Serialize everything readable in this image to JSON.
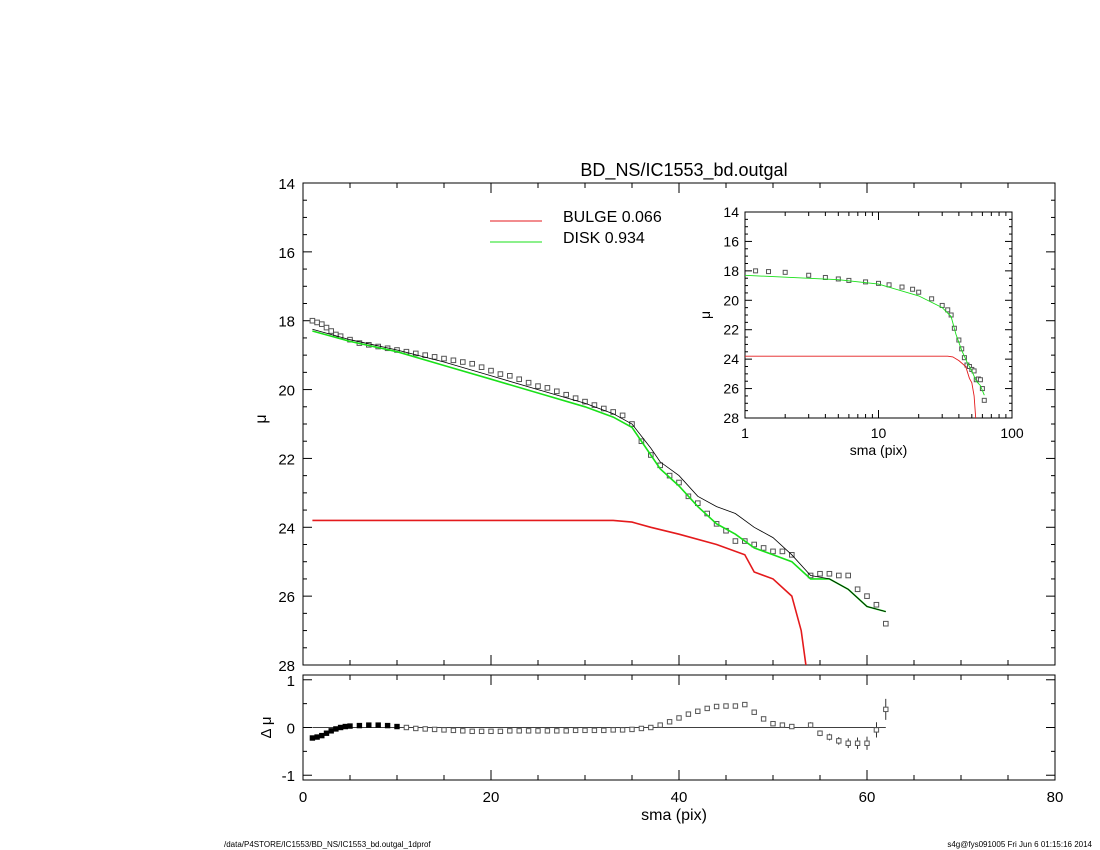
{
  "footer": {
    "left": "/data/P4STORE/IC1553/BD_NS/IC1553_bd.outgal_1dprof",
    "right": "s4g@fys091005  Fri Jun  6 01:15:16 2014"
  },
  "colors": {
    "bulge": "#e41a1c",
    "disk": "#19e019",
    "total": "#000000",
    "points": "#555555"
  },
  "chart_data": [
    {
      "id": "main",
      "type": "line",
      "title": "BD_NS/IC1553_bd.outgal",
      "xlabel": "",
      "ylabel": "μ",
      "xlim": [
        0,
        80
      ],
      "ylim": [
        28,
        14
      ],
      "y_ticks": [
        "14",
        "16",
        "18",
        "20",
        "22",
        "24",
        "26",
        "28"
      ],
      "y_tick_values": [
        14,
        16,
        18,
        20,
        22,
        24,
        26,
        28
      ],
      "legend": {
        "placement": "top-center",
        "entries": [
          {
            "name": "BULGE",
            "value": "0.066",
            "color": "#e41a1c"
          },
          {
            "name": "DISK",
            "value": "0.934",
            "color": "#19e019"
          }
        ]
      },
      "series": [
        {
          "name": "BULGE",
          "color": "#e41a1c",
          "x": [
            1,
            5,
            10,
            15,
            20,
            25,
            30,
            33,
            35,
            37,
            40,
            44,
            47,
            48,
            50,
            52,
            53,
            53.5
          ],
          "y": [
            23.8,
            23.8,
            23.8,
            23.8,
            23.8,
            23.8,
            23.8,
            23.8,
            23.85,
            24.0,
            24.2,
            24.5,
            24.8,
            25.3,
            25.5,
            26.0,
            27.0,
            28.0
          ]
        },
        {
          "name": "DISK",
          "color": "#19e019",
          "x": [
            1,
            5,
            10,
            15,
            20,
            25,
            30,
            33,
            35,
            37,
            38,
            40,
            42,
            44,
            46,
            48,
            50,
            52,
            54,
            56,
            58,
            60,
            62
          ],
          "y": [
            18.3,
            18.6,
            18.9,
            19.3,
            19.7,
            20.1,
            20.5,
            20.8,
            21.1,
            21.9,
            22.3,
            22.8,
            23.4,
            23.9,
            24.2,
            24.6,
            24.8,
            25.0,
            25.5,
            25.5,
            25.8,
            26.3,
            26.45
          ]
        },
        {
          "name": "",
          "color": "#000000",
          "x": [
            1,
            5,
            10,
            15,
            20,
            25,
            30,
            33,
            35,
            37,
            38,
            40,
            42,
            44,
            46,
            48,
            50,
            52,
            54,
            56,
            58,
            60,
            62
          ],
          "y": [
            18.25,
            18.55,
            18.85,
            19.2,
            19.6,
            20.0,
            20.4,
            20.7,
            21.0,
            21.7,
            22.1,
            22.5,
            23.1,
            23.4,
            23.6,
            24.0,
            24.3,
            24.8,
            25.4,
            25.5,
            25.8,
            26.3,
            26.45
          ]
        }
      ],
      "points": {
        "x": [
          1,
          1.5,
          2,
          2.5,
          3,
          3.5,
          4,
          5,
          6,
          7,
          8,
          9,
          10,
          11,
          12,
          13,
          14,
          15,
          16,
          17,
          18,
          19,
          20,
          21,
          22,
          23,
          24,
          25,
          26,
          27,
          28,
          29,
          30,
          31,
          32,
          33,
          34,
          35,
          36,
          37,
          38,
          39,
          40,
          41,
          42,
          43,
          44,
          45,
          46,
          47,
          48,
          49,
          50,
          51,
          52,
          54,
          55,
          56,
          57,
          58,
          59,
          60,
          61,
          62
        ],
        "y": [
          18.0,
          18.05,
          18.1,
          18.2,
          18.3,
          18.4,
          18.45,
          18.55,
          18.65,
          18.7,
          18.75,
          18.8,
          18.85,
          18.9,
          18.95,
          19.0,
          19.05,
          19.1,
          19.15,
          19.2,
          19.25,
          19.35,
          19.45,
          19.55,
          19.6,
          19.7,
          19.8,
          19.9,
          19.95,
          20.05,
          20.15,
          20.25,
          20.35,
          20.45,
          20.55,
          20.65,
          20.75,
          21.0,
          21.5,
          21.9,
          22.2,
          22.5,
          22.7,
          23.1,
          23.3,
          23.6,
          23.9,
          24.1,
          24.4,
          24.4,
          24.5,
          24.6,
          24.7,
          24.7,
          24.8,
          25.4,
          25.35,
          25.35,
          25.4,
          25.4,
          25.8,
          26.0,
          26.25,
          26.8
        ]
      }
    },
    {
      "id": "residual",
      "type": "scatter",
      "xlabel": "sma (pix)",
      "ylabel": "Δ μ",
      "xlim": [
        0,
        80
      ],
      "ylim": [
        -1.1,
        1.1
      ],
      "x_ticks": [
        "0",
        "20",
        "40",
        "60",
        "80"
      ],
      "x_tick_values": [
        0,
        20,
        40,
        60,
        80
      ],
      "y_ticks": [
        "1",
        "0",
        "-1"
      ],
      "y_tick_values": [
        1,
        0,
        -1
      ],
      "zero_line": 0,
      "x": [
        1,
        1.5,
        2,
        2.5,
        3,
        3.5,
        4,
        4.5,
        5,
        6,
        7,
        8,
        9,
        10,
        11,
        12,
        13,
        14,
        15,
        16,
        17,
        18,
        19,
        20,
        21,
        22,
        23,
        24,
        25,
        26,
        27,
        28,
        29,
        30,
        31,
        32,
        33,
        34,
        35,
        36,
        37,
        38,
        39,
        40,
        41,
        42,
        43,
        44,
        45,
        46,
        47,
        48,
        49,
        50,
        51,
        52,
        54,
        55,
        56,
        57,
        58,
        59,
        60,
        61,
        62
      ],
      "y": [
        -0.22,
        -0.2,
        -0.17,
        -0.12,
        -0.07,
        -0.03,
        0.0,
        0.02,
        0.03,
        0.04,
        0.05,
        0.05,
        0.04,
        0.02,
        0.0,
        -0.02,
        -0.03,
        -0.04,
        -0.05,
        -0.06,
        -0.07,
        -0.08,
        -0.08,
        -0.08,
        -0.08,
        -0.07,
        -0.07,
        -0.07,
        -0.07,
        -0.07,
        -0.07,
        -0.07,
        -0.06,
        -0.06,
        -0.06,
        -0.06,
        -0.05,
        -0.05,
        -0.04,
        -0.02,
        0.0,
        0.05,
        0.12,
        0.2,
        0.28,
        0.34,
        0.4,
        0.44,
        0.45,
        0.45,
        0.48,
        0.32,
        0.18,
        0.08,
        0.05,
        0.02,
        0.05,
        -0.12,
        -0.2,
        -0.28,
        -0.33,
        -0.33,
        -0.33,
        -0.05,
        0.38
      ],
      "err": [
        0.01,
        0.01,
        0.01,
        0.01,
        0.01,
        0.01,
        0.01,
        0.01,
        0.01,
        0.01,
        0.01,
        0.01,
        0.01,
        0.01,
        0.01,
        0.01,
        0.01,
        0.01,
        0.01,
        0.01,
        0.01,
        0.01,
        0.01,
        0.01,
        0.01,
        0.01,
        0.01,
        0.01,
        0.01,
        0.01,
        0.01,
        0.01,
        0.01,
        0.01,
        0.01,
        0.01,
        0.01,
        0.01,
        0.01,
        0.01,
        0.01,
        0.01,
        0.01,
        0.01,
        0.01,
        0.01,
        0.01,
        0.01,
        0.01,
        0.01,
        0.01,
        0.02,
        0.02,
        0.02,
        0.03,
        0.04,
        0.06,
        0.06,
        0.07,
        0.08,
        0.1,
        0.12,
        0.14,
        0.16,
        0.22
      ]
    },
    {
      "id": "inset",
      "type": "line",
      "xlabel": "sma (pix)",
      "ylabel": "μ",
      "x_scale": "log",
      "xlim": [
        1,
        100
      ],
      "ylim": [
        28,
        14
      ],
      "x_ticks": [
        "1",
        "10",
        "100"
      ],
      "x_tick_values": [
        1,
        10,
        100
      ],
      "y_ticks": [
        "14",
        "16",
        "18",
        "20",
        "22",
        "24",
        "26",
        "28"
      ],
      "y_tick_values": [
        14,
        16,
        18,
        20,
        22,
        24,
        26,
        28
      ],
      "series": [
        {
          "name": "BULGE",
          "color": "#e41a1c",
          "x": [
            1,
            5,
            10,
            20,
            33,
            36,
            40,
            45,
            48,
            50,
            52,
            53.5
          ],
          "y": [
            23.8,
            23.8,
            23.8,
            23.8,
            23.8,
            23.85,
            24.1,
            24.5,
            25.3,
            25.6,
            26.5,
            28.0
          ]
        },
        {
          "name": "DISK",
          "color": "#19e019",
          "x": [
            1,
            5,
            10,
            20,
            30,
            35,
            38,
            42,
            46,
            50,
            54,
            58,
            62
          ],
          "y": [
            18.3,
            18.6,
            18.9,
            19.7,
            20.5,
            21.1,
            22.3,
            23.4,
            24.2,
            24.8,
            25.5,
            25.8,
            26.45
          ]
        }
      ],
      "points": {
        "x": [
          1.2,
          1.5,
          2,
          3,
          4,
          5,
          6,
          8,
          10,
          12,
          15,
          18,
          20,
          25,
          30,
          33,
          35,
          37,
          40,
          42,
          44,
          46,
          48,
          50,
          52,
          54,
          56,
          58,
          60,
          62
        ],
        "y": [
          18.0,
          18.05,
          18.1,
          18.3,
          18.45,
          18.55,
          18.65,
          18.75,
          18.85,
          18.95,
          19.1,
          19.25,
          19.45,
          19.9,
          20.35,
          20.65,
          21.0,
          21.9,
          22.7,
          23.3,
          23.9,
          24.4,
          24.5,
          24.7,
          24.8,
          25.4,
          25.35,
          25.4,
          26.0,
          26.8
        ]
      }
    }
  ]
}
